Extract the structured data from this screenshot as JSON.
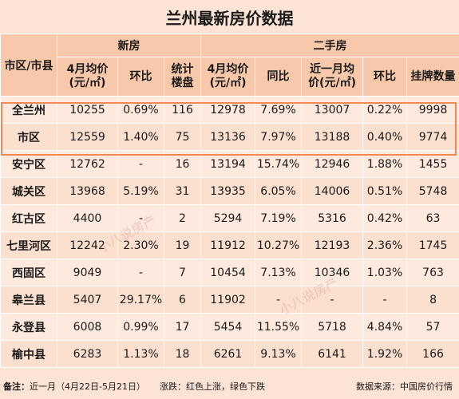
{
  "title": "兰州最新房价数据",
  "headers": {
    "area": "市区/市县",
    "new_group": "新房",
    "second_group": "二手房",
    "new_avg_line1": "4月均价",
    "new_avg_line2": "(元/㎡)",
    "new_mom": "环比",
    "new_count_line1": "统计",
    "new_count_line2": "楼盘",
    "sec_avg_line1": "4月均价",
    "sec_avg_line2": "(元/㎡)",
    "sec_yoy": "同比",
    "sec_recent_line1": "近一月均",
    "sec_recent_line2": "价(元/㎡)",
    "sec_mom": "环比",
    "sec_listings": "挂牌数量"
  },
  "rows": [
    {
      "area": "全兰州",
      "new_avg": "10255",
      "new_mom": "0.69%",
      "new_mom_dir": "up",
      "new_count": "116",
      "sec_avg": "12978",
      "sec_yoy": "7.69%",
      "sec_yoy_dir": "up",
      "sec_recent": "13007",
      "sec_mom": "0.22%",
      "sec_mom_dir": "up",
      "listings": "9998"
    },
    {
      "area": "市区",
      "new_avg": "12559",
      "new_mom": "1.40%",
      "new_mom_dir": "up",
      "new_count": "75",
      "sec_avg": "13136",
      "sec_yoy": "7.97%",
      "sec_yoy_dir": "up",
      "sec_recent": "13188",
      "sec_mom": "0.40%",
      "sec_mom_dir": "up",
      "listings": "9774"
    },
    {
      "area": "安宁区",
      "new_avg": "12762",
      "new_mom": "-",
      "new_mom_dir": "neutral",
      "new_count": "16",
      "sec_avg": "13194",
      "sec_yoy": "15.74%",
      "sec_yoy_dir": "up",
      "sec_recent": "12946",
      "sec_mom": "1.88%",
      "sec_mom_dir": "down",
      "listings": "1455"
    },
    {
      "area": "城关区",
      "new_avg": "13968",
      "new_mom": "5.19%",
      "new_mom_dir": "up",
      "new_count": "31",
      "sec_avg": "13935",
      "sec_yoy": "6.05%",
      "sec_yoy_dir": "up",
      "sec_recent": "14006",
      "sec_mom": "0.51%",
      "sec_mom_dir": "up",
      "listings": "5748"
    },
    {
      "area": "红古区",
      "new_avg": "4400",
      "new_mom": "-",
      "new_mom_dir": "neutral",
      "new_count": "2",
      "sec_avg": "5294",
      "sec_yoy": "7.19%",
      "sec_yoy_dir": "up",
      "sec_recent": "5316",
      "sec_mom": "0.42%",
      "sec_mom_dir": "up",
      "listings": "63"
    },
    {
      "area": "七里河区",
      "new_avg": "12242",
      "new_mom": "2.30%",
      "new_mom_dir": "down",
      "new_count": "19",
      "sec_avg": "11912",
      "sec_yoy": "10.27%",
      "sec_yoy_dir": "up",
      "sec_recent": "12193",
      "sec_mom": "2.36%",
      "sec_mom_dir": "up",
      "listings": "1745"
    },
    {
      "area": "西固区",
      "new_avg": "9049",
      "new_mom": "-",
      "new_mom_dir": "neutral",
      "new_count": "7",
      "sec_avg": "10454",
      "sec_yoy": "7.13%",
      "sec_yoy_dir": "up",
      "sec_recent": "10346",
      "sec_mom": "1.03%",
      "sec_mom_dir": "down",
      "listings": "763"
    },
    {
      "area": "皋兰县",
      "new_avg": "5407",
      "new_mom": "29.17%",
      "new_mom_dir": "down",
      "new_count": "6",
      "sec_avg": "11902",
      "sec_yoy": "-",
      "sec_yoy_dir": "neutral",
      "sec_recent": "-",
      "sec_mom": "-",
      "sec_mom_dir": "neutral",
      "listings": "8"
    },
    {
      "area": "永登县",
      "new_avg": "6008",
      "new_mom": "0.99%",
      "new_mom_dir": "up",
      "new_count": "17",
      "sec_avg": "5454",
      "sec_yoy": "11.55%",
      "sec_yoy_dir": "down",
      "sec_recent": "5718",
      "sec_mom": "4.84%",
      "sec_mom_dir": "up",
      "listings": "57"
    },
    {
      "area": "榆中县",
      "new_avg": "6283",
      "new_mom": "1.13%",
      "new_mom_dir": "up",
      "new_count": "18",
      "sec_avg": "6261",
      "sec_yoy": "9.13%",
      "sec_yoy_dir": "down",
      "sec_recent": "6141",
      "sec_mom": "1.92%",
      "sec_mom_dir": "down",
      "listings": "166"
    }
  ],
  "footer": {
    "note_label": "备注：",
    "note_text": "近一月（4月22日-5月21日）",
    "legend": "涨跌：红色上涨，绿色下跌",
    "source": "数据来源：中国房价行情"
  },
  "watermark": "小八说房产",
  "colors": {
    "up": "#e8282d",
    "down": "#27a83c",
    "header_bg": "#f7c9aa",
    "highlight_border": "#f08a52"
  }
}
